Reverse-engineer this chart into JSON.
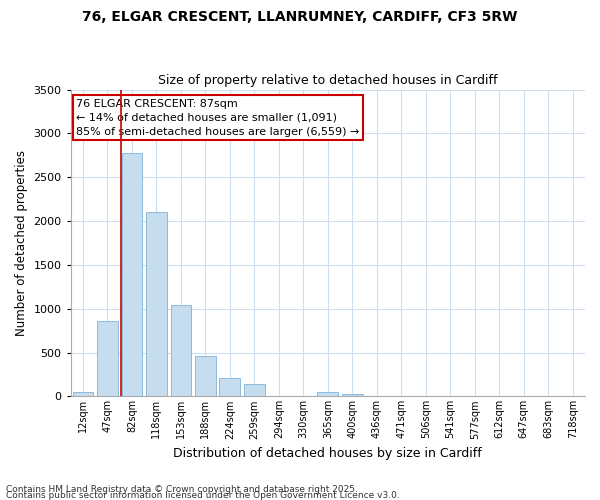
{
  "title_line1": "76, ELGAR CRESCENT, LLANRUMNEY, CARDIFF, CF3 5RW",
  "title_line2": "Size of property relative to detached houses in Cardiff",
  "xlabel": "Distribution of detached houses by size in Cardiff",
  "ylabel": "Number of detached properties",
  "bar_color": "#c6ddf0",
  "bar_edge_color": "#7fb3d9",
  "background_color": "#ffffff",
  "grid_color": "#d0dff0",
  "categories": [
    "12sqm",
    "47sqm",
    "82sqm",
    "118sqm",
    "153sqm",
    "188sqm",
    "224sqm",
    "259sqm",
    "294sqm",
    "330sqm",
    "365sqm",
    "400sqm",
    "436sqm",
    "471sqm",
    "506sqm",
    "541sqm",
    "577sqm",
    "612sqm",
    "647sqm",
    "683sqm",
    "718sqm"
  ],
  "values": [
    55,
    855,
    2780,
    2100,
    1040,
    460,
    210,
    145,
    0,
    0,
    50,
    30,
    0,
    0,
    0,
    0,
    0,
    0,
    0,
    0,
    0
  ],
  "ylim": [
    0,
    3500
  ],
  "red_line_index": 2,
  "annotation_text": "76 ELGAR CRESCENT: 87sqm\n← 14% of detached houses are smaller (1,091)\n85% of semi-detached houses are larger (6,559) →",
  "annotation_box_color": "#ffffff",
  "annotation_border_color": "#cc0000",
  "footnote_line1": "Contains HM Land Registry data © Crown copyright and database right 2025.",
  "footnote_line2": "Contains public sector information licensed under the Open Government Licence v3.0."
}
